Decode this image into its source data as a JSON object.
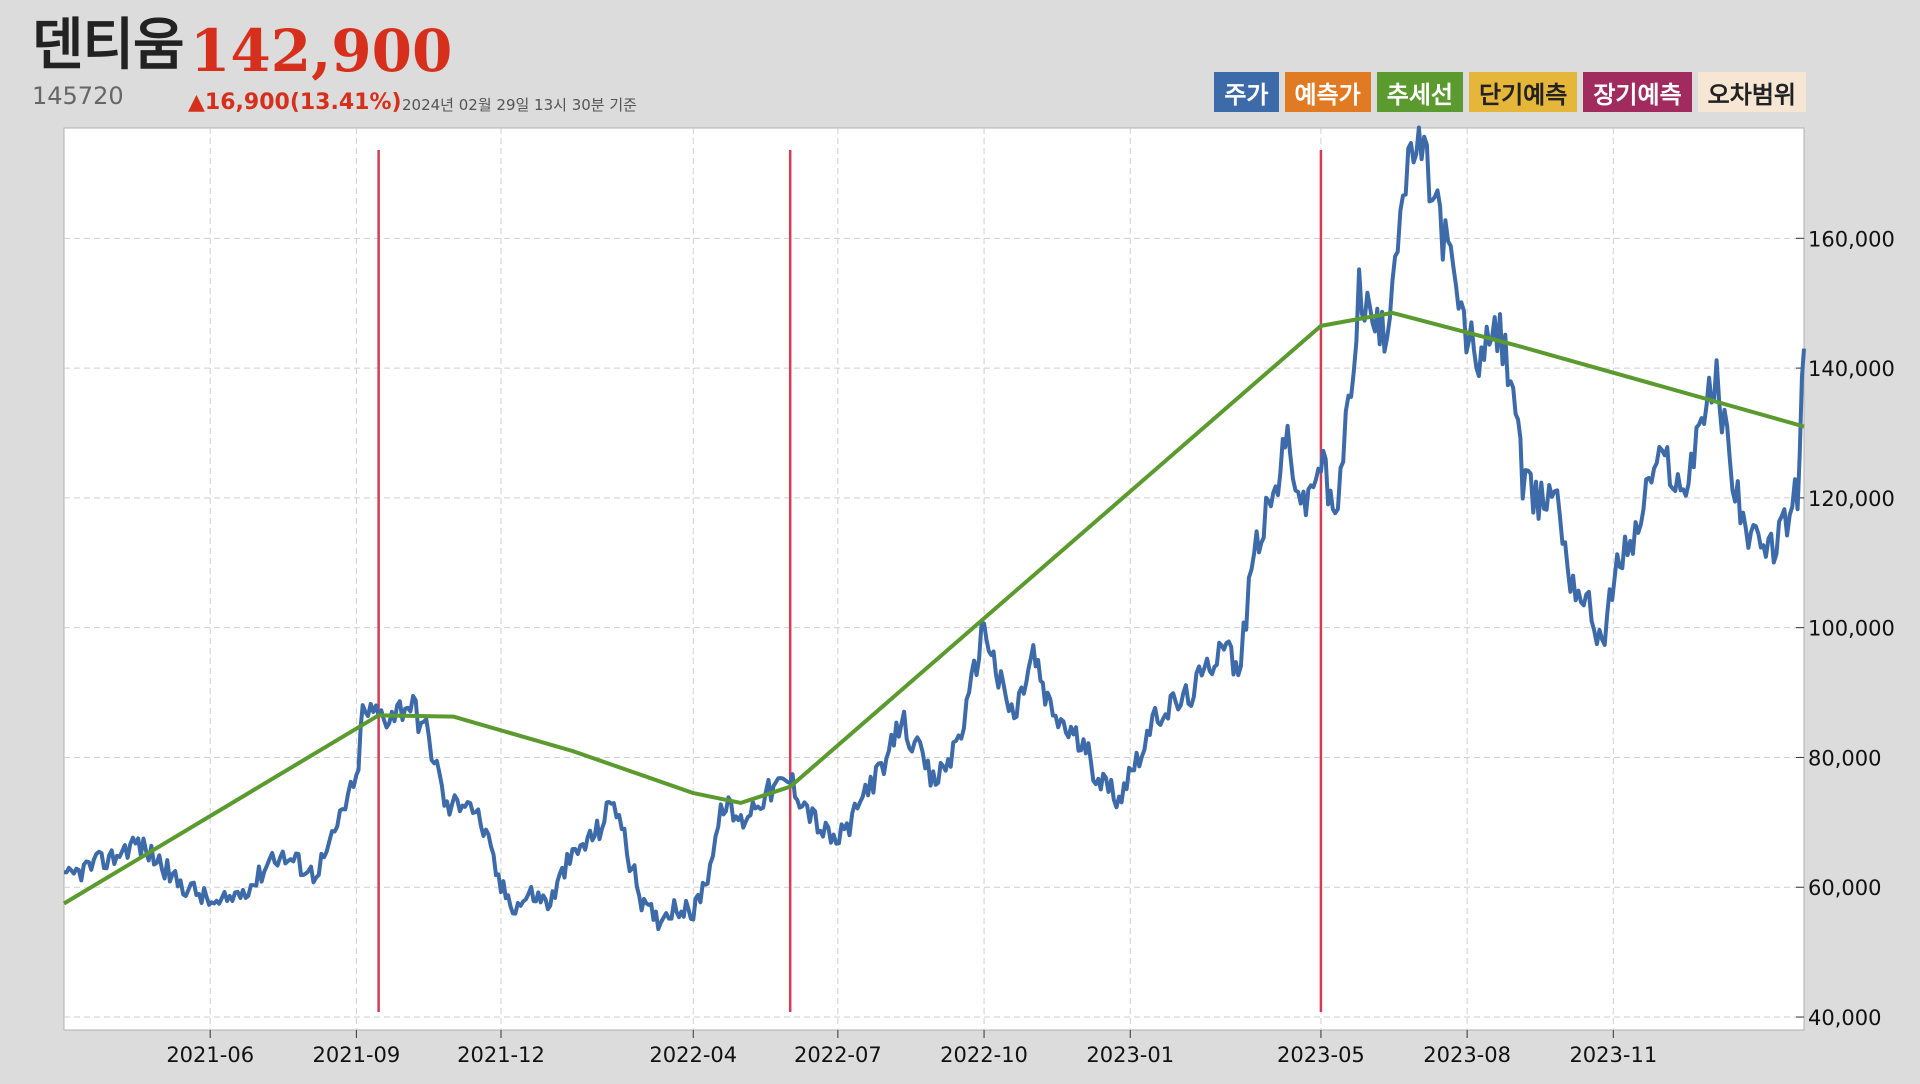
{
  "stock": {
    "name": "덴티움",
    "price": "142,900",
    "code": "145720",
    "change": "▲16,900(13.41%)",
    "time": "2024년 02월 29일 13시 30분 기준"
  },
  "legend": [
    {
      "label": "주가",
      "color": "#3d6aa8",
      "text_color": "#ffffff"
    },
    {
      "label": "예측가",
      "color": "#e07b24",
      "text_color": "#ffffff"
    },
    {
      "label": "추세선",
      "color": "#5a9a2e",
      "text_color": "#ffffff"
    },
    {
      "label": "단기예측",
      "color": "#e6b63a",
      "text_color": "#222222"
    },
    {
      "label": "장기예측",
      "color": "#a12a5e",
      "text_color": "#ffffff"
    },
    {
      "label": "오차범위",
      "color": "#f7e6d4",
      "text_color": "#222222"
    }
  ],
  "chart_data": {
    "type": "line",
    "x_start": "2021-03-01",
    "x_end": "2024-02-29",
    "xticks": [
      "2021-06",
      "2021-09",
      "2021-12",
      "2022-04",
      "2022-07",
      "2022-10",
      "2023-01",
      "2023-05",
      "2023-08",
      "2023-11"
    ],
    "ylim": [
      38000,
      177000
    ],
    "yticks": [
      40000,
      60000,
      80000,
      100000,
      120000,
      140000,
      160000
    ],
    "ytick_labels": [
      "40,000",
      "60,000",
      "80,000",
      "100,000",
      "120,000",
      "140,000",
      "160,000"
    ],
    "grid": true,
    "vertical_markers": [
      "2021-09-15",
      "2022-06-01",
      "2023-05-01"
    ],
    "series": [
      {
        "name": "주가",
        "color": "#3d6aa8",
        "points": [
          [
            "2021-03-01",
            61000
          ],
          [
            "2021-03-15",
            63000
          ],
          [
            "2021-03-31",
            64500
          ],
          [
            "2021-04-15",
            67000
          ],
          [
            "2021-04-30",
            64000
          ],
          [
            "2021-05-10",
            61000
          ],
          [
            "2021-05-25",
            59000
          ],
          [
            "2021-06-05",
            57000
          ],
          [
            "2021-06-15",
            58500
          ],
          [
            "2021-06-30",
            61000
          ],
          [
            "2021-07-10",
            65000
          ],
          [
            "2021-07-25",
            64000
          ],
          [
            "2021-08-05",
            62000
          ],
          [
            "2021-08-15",
            66000
          ],
          [
            "2021-08-25",
            73000
          ],
          [
            "2021-09-01",
            76000
          ],
          [
            "2021-09-05",
            87000
          ],
          [
            "2021-09-20",
            86500
          ],
          [
            "2021-10-05",
            88500
          ],
          [
            "2021-10-15",
            84000
          ],
          [
            "2021-10-20",
            80000
          ],
          [
            "2021-10-28",
            72000
          ],
          [
            "2021-11-10",
            74000
          ],
          [
            "2021-11-20",
            69000
          ],
          [
            "2021-12-01",
            60000
          ],
          [
            "2021-12-10",
            57000
          ],
          [
            "2021-12-20",
            59000
          ],
          [
            "2022-01-01",
            57500
          ],
          [
            "2022-01-10",
            63000
          ],
          [
            "2022-01-20",
            66000
          ],
          [
            "2022-02-01",
            69000
          ],
          [
            "2022-02-10",
            74000
          ],
          [
            "2022-02-20",
            64000
          ],
          [
            "2022-03-01",
            57000
          ],
          [
            "2022-03-10",
            55000
          ],
          [
            "2022-03-20",
            57000
          ],
          [
            "2022-04-01",
            56000
          ],
          [
            "2022-04-10",
            62000
          ],
          [
            "2022-04-20",
            73000
          ],
          [
            "2022-05-01",
            70000
          ],
          [
            "2022-05-10",
            73000
          ],
          [
            "2022-05-20",
            75000
          ],
          [
            "2022-06-01",
            76500
          ],
          [
            "2022-06-10",
            73000
          ],
          [
            "2022-06-20",
            69000
          ],
          [
            "2022-06-30",
            67000
          ],
          [
            "2022-07-10",
            70000
          ],
          [
            "2022-07-20",
            76000
          ],
          [
            "2022-07-30",
            78000
          ],
          [
            "2022-08-10",
            86000
          ],
          [
            "2022-08-20",
            81000
          ],
          [
            "2022-08-30",
            76000
          ],
          [
            "2022-09-10",
            80000
          ],
          [
            "2022-09-20",
            87000
          ],
          [
            "2022-10-01",
            101000
          ],
          [
            "2022-10-10",
            92000
          ],
          [
            "2022-10-20",
            86000
          ],
          [
            "2022-11-01",
            96000
          ],
          [
            "2022-11-10",
            88000
          ],
          [
            "2022-11-20",
            85000
          ],
          [
            "2022-12-01",
            82000
          ],
          [
            "2022-12-15",
            76000
          ],
          [
            "2022-12-25",
            74000
          ],
          [
            "2023-01-05",
            80000
          ],
          [
            "2023-01-20",
            87000
          ],
          [
            "2023-02-05",
            89000
          ],
          [
            "2023-02-20",
            94000
          ],
          [
            "2023-03-01",
            99000
          ],
          [
            "2023-03-10",
            92000
          ],
          [
            "2023-03-20",
            112000
          ],
          [
            "2023-04-01",
            120000
          ],
          [
            "2023-04-10",
            129000
          ],
          [
            "2023-04-20",
            118000
          ],
          [
            "2023-05-01",
            126000
          ],
          [
            "2023-05-10",
            116000
          ],
          [
            "2023-05-20",
            138000
          ],
          [
            "2023-05-25",
            152000
          ],
          [
            "2023-06-01",
            148000
          ],
          [
            "2023-06-10",
            144000
          ],
          [
            "2023-06-20",
            165000
          ],
          [
            "2023-06-30",
            175000
          ],
          [
            "2023-07-10",
            168000
          ],
          [
            "2023-07-20",
            158000
          ],
          [
            "2023-07-30",
            146000
          ],
          [
            "2023-08-10",
            141000
          ],
          [
            "2023-08-20",
            146000
          ],
          [
            "2023-08-30",
            138000
          ],
          [
            "2023-09-05",
            122000
          ],
          [
            "2023-09-15",
            119000
          ],
          [
            "2023-09-25",
            122000
          ],
          [
            "2023-10-05",
            108000
          ],
          [
            "2023-10-15",
            104000
          ],
          [
            "2023-10-25",
            98000
          ],
          [
            "2023-11-05",
            111000
          ],
          [
            "2023-11-15",
            114000
          ],
          [
            "2023-11-25",
            124000
          ],
          [
            "2023-12-05",
            126000
          ],
          [
            "2023-12-15",
            120000
          ],
          [
            "2023-12-25",
            132000
          ],
          [
            "2024-01-05",
            138000
          ],
          [
            "2024-01-15",
            124000
          ],
          [
            "2024-01-25",
            114000
          ],
          [
            "2024-02-05",
            111000
          ],
          [
            "2024-02-15",
            115000
          ],
          [
            "2024-02-25",
            121000
          ],
          [
            "2024-02-29",
            143000
          ]
        ]
      },
      {
        "name": "추세선",
        "color": "#5a9a2e",
        "points": [
          [
            "2021-03-01",
            57500
          ],
          [
            "2021-09-15",
            86500
          ],
          [
            "2021-11-01",
            86300
          ],
          [
            "2022-01-15",
            81000
          ],
          [
            "2022-04-01",
            74500
          ],
          [
            "2022-05-01",
            73000
          ],
          [
            "2022-06-01",
            75500
          ],
          [
            "2023-05-01",
            146500
          ],
          [
            "2023-06-15",
            148500
          ],
          [
            "2023-09-01",
            143500
          ],
          [
            "2024-02-29",
            131000
          ]
        ]
      }
    ]
  }
}
